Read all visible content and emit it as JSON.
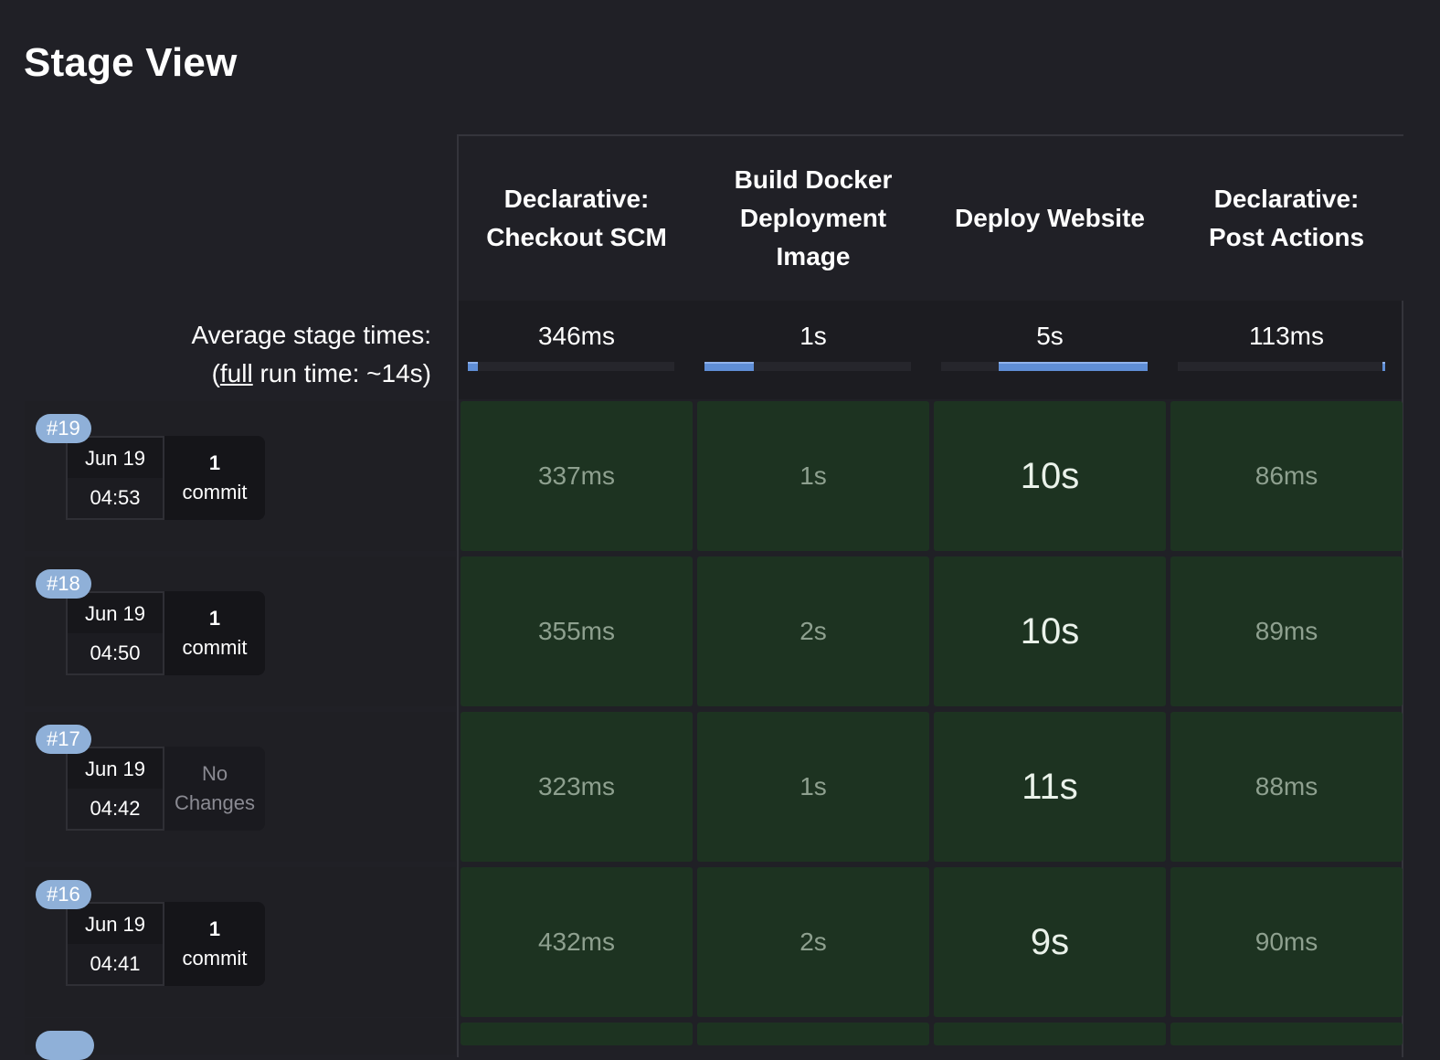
{
  "page_title": "Stage View",
  "stages": [
    {
      "name": "Declarative: Checkout SCM",
      "avg": "346ms",
      "bar": {
        "start": 0.0,
        "fill": 0.05
      }
    },
    {
      "name": "Build Docker Deployment Image",
      "avg": "1s",
      "bar": {
        "start": 0.0,
        "fill": 0.24
      }
    },
    {
      "name": "Deploy Website",
      "avg": "5s",
      "bar": {
        "start": 0.28,
        "fill": 0.72
      }
    },
    {
      "name": "Declarative: Post Actions",
      "avg": "113ms",
      "bar": {
        "start": 0.99,
        "fill": 0.01
      }
    }
  ],
  "average": {
    "label": "Average stage times:",
    "paren_open": "(",
    "full_link": "full",
    "run_time": " run time: ~14s)"
  },
  "runs": [
    {
      "id": "#19",
      "date": "Jun 19",
      "time": "04:53",
      "changes_count": "1",
      "changes_label": "commit",
      "no_changes": false,
      "durations": [
        "337ms",
        "1s",
        "10s",
        "86ms"
      ]
    },
    {
      "id": "#18",
      "date": "Jun 19",
      "time": "04:50",
      "changes_count": "1",
      "changes_label": "commit",
      "no_changes": false,
      "durations": [
        "355ms",
        "2s",
        "10s",
        "89ms"
      ]
    },
    {
      "id": "#17",
      "date": "Jun 19",
      "time": "04:42",
      "changes_count": "No",
      "changes_label": "Changes",
      "no_changes": true,
      "durations": [
        "323ms",
        "1s",
        "11s",
        "88ms"
      ]
    },
    {
      "id": "#16",
      "date": "Jun 19",
      "time": "04:41",
      "changes_count": "1",
      "changes_label": "commit",
      "no_changes": false,
      "durations": [
        "432ms",
        "2s",
        "9s",
        "90ms"
      ]
    }
  ],
  "colors": {
    "background": "#202026",
    "success_cell": "#1d3321",
    "run_badge": "#8fb0d8",
    "bar_fill": "#5f8ed6"
  }
}
